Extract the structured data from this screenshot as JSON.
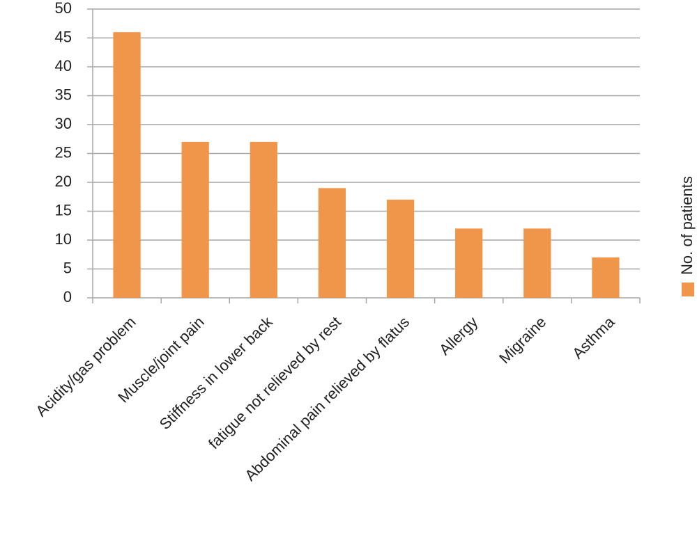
{
  "chart_data": {
    "type": "bar",
    "categories": [
      "Acidity/gas problem",
      "Muscle/joint pain",
      "Stiffness in lower back",
      "fatigue not relieved by rest",
      "Abdominal pain relieved by flatus",
      "Allergy",
      "Migraine",
      "Asthma"
    ],
    "series": [
      {
        "name": "No. of patients",
        "color": "#f0964a",
        "values": [
          46,
          27,
          27,
          19,
          17,
          12,
          12,
          7
        ]
      }
    ],
    "ylim": [
      0,
      50
    ],
    "yticks": [
      0,
      5,
      10,
      15,
      20,
      25,
      30,
      35,
      40,
      45,
      50
    ],
    "grid": true,
    "legend": "right"
  }
}
